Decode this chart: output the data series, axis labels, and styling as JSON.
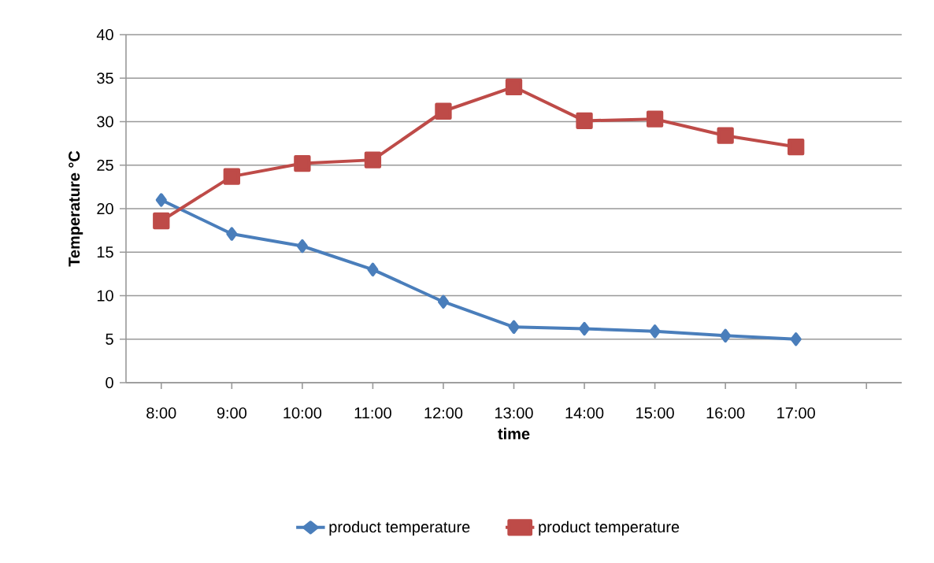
{
  "chart_data": {
    "type": "line",
    "xlabel": "time",
    "ylabel": "Temperature °C",
    "categories": [
      "8:00",
      "9:00",
      "10:00",
      "11:00",
      "12:00",
      "13:00",
      "14:00",
      "15:00",
      "16:00",
      "17:00",
      null
    ],
    "series": [
      {
        "name": "product temperature",
        "color": "#4a7ebb",
        "marker": "diamond",
        "values": [
          21.0,
          17.1,
          15.7,
          13.0,
          9.3,
          6.4,
          6.2,
          5.9,
          5.4,
          5.0,
          null
        ]
      },
      {
        "name": "product temperature",
        "color": "#be4b48",
        "marker": "square",
        "values": [
          18.6,
          23.7,
          25.2,
          25.6,
          31.2,
          34.0,
          30.1,
          30.3,
          28.4,
          27.1,
          null
        ]
      }
    ],
    "ylim": [
      0,
      40
    ],
    "yticks": [
      0,
      5,
      10,
      15,
      20,
      25,
      30,
      35,
      40
    ],
    "grid": "y",
    "legend": "bottom",
    "line_style": "solid"
  }
}
